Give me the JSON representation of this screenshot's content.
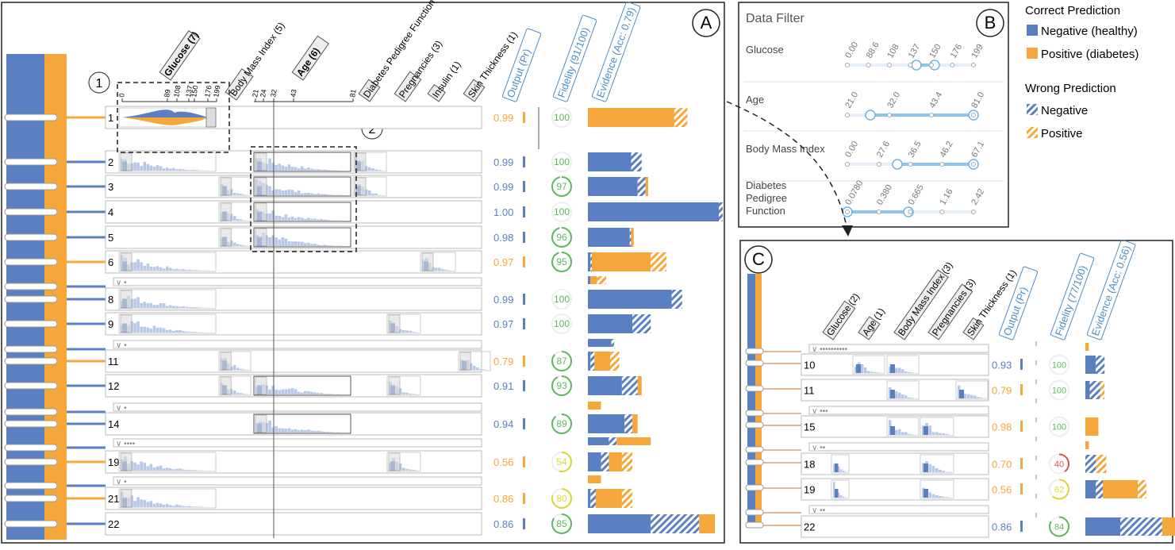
{
  "panelA": {
    "label": "A",
    "callout1": "1",
    "callout2": "2",
    "features": [
      "Glucose (7)",
      "Body Mass Index (5)",
      "Age (6)",
      "Diabetes Pedigree Function",
      "Pregnancies (3)",
      "Insulin (1)",
      "Skin Thickness (1)"
    ],
    "column_headers": [
      "Output (Pr)",
      "Fidelity (91/100)",
      "Evidence (Acc: 0.79)"
    ],
    "glucose_ticks": [
      "0",
      "89",
      "108",
      "137",
      "150",
      "176",
      "199"
    ],
    "age_ticks": [
      "21",
      "24",
      "32",
      "43",
      "81"
    ],
    "rows": [
      {
        "id": "1",
        "kind": "rule",
        "output": "0.99",
        "out_class": "pos",
        "fidelity": "100",
        "fid_frac": 1.0,
        "fid_color": "#5cb85c",
        "ev_neg": 0,
        "ev_negw": 0,
        "ev_pos": 0.66,
        "ev_posw": 0.1
      },
      {
        "id": "2",
        "kind": "rule",
        "output": "0.99",
        "out_class": "neg",
        "fidelity": "100",
        "fid_frac": 1.0,
        "fid_color": "#5cb85c",
        "ev_neg": 0.33,
        "ev_negw": 0.08,
        "ev_pos": 0,
        "ev_posw": 0
      },
      {
        "id": "3",
        "kind": "rule",
        "output": "0.99",
        "out_class": "neg",
        "fidelity": "97",
        "fid_color": "#5cb85c",
        "fid_frac": 0.97,
        "ev_neg": 0.38,
        "ev_negw": 0.06,
        "ev_pos": 0.02,
        "ev_posw": 0
      },
      {
        "id": "4",
        "kind": "rule",
        "output": "1.00",
        "out_class": "neg",
        "fidelity": "100",
        "fid_frac": 1.0,
        "fid_color": "#5cb85c",
        "ev_neg": 1.0,
        "ev_negw": 0.03,
        "ev_pos": 0,
        "ev_posw": 0
      },
      {
        "id": "5",
        "kind": "rule",
        "output": "0.98",
        "out_class": "neg",
        "fidelity": "96",
        "fid_frac": 0.96,
        "fid_color": "#5cb85c",
        "ev_neg": 0.32,
        "ev_negw": 0.01,
        "ev_pos": 0.02,
        "ev_posw": 0
      },
      {
        "id": "6",
        "kind": "rule",
        "output": "0.97",
        "out_class": "pos",
        "fidelity": "95",
        "fid_frac": 0.95,
        "fid_color": "#5cb85c",
        "ev_neg": 0.02,
        "ev_negw": 0.01,
        "ev_pos": 0.45,
        "ev_posw": 0.12
      },
      {
        "id": "",
        "kind": "collapsed",
        "dots": "•",
        "ev_neg": 0.02,
        "ev_negw": 0,
        "ev_pos": 0.05,
        "ev_posw": 0.07
      },
      {
        "id": "8",
        "kind": "rule",
        "output": "0.99",
        "out_class": "neg",
        "fidelity": "100",
        "fid_frac": 1.0,
        "fid_color": "#5cb85c",
        "ev_neg": 0.64,
        "ev_negw": 0.08,
        "ev_pos": 0,
        "ev_posw": 0
      },
      {
        "id": "9",
        "kind": "rule",
        "output": "0.97",
        "out_class": "neg",
        "fidelity": "100",
        "fid_frac": 1.0,
        "fid_color": "#5cb85c",
        "ev_neg": 0.34,
        "ev_negw": 0.14,
        "ev_pos": 0,
        "ev_posw": 0
      },
      {
        "id": "",
        "kind": "collapsed",
        "dots": "•",
        "ev_neg": 0.18,
        "ev_negw": 0.02,
        "ev_pos": 0,
        "ev_posw": 0
      },
      {
        "id": "11",
        "kind": "rule",
        "output": "0.79",
        "out_class": "pos",
        "fidelity": "87",
        "fid_frac": 0.87,
        "fid_color": "#5cb85c",
        "ev_neg": 0.02,
        "ev_negw": 0.03,
        "ev_pos": 0.12,
        "ev_posw": 0.07
      },
      {
        "id": "12",
        "kind": "rule",
        "output": "0.91",
        "out_class": "neg",
        "fidelity": "93",
        "fid_frac": 0.93,
        "fid_color": "#5cb85c",
        "ev_neg": 0.26,
        "ev_negw": 0.12,
        "ev_pos": 0.03,
        "ev_posw": 0
      },
      {
        "id": "",
        "kind": "collapsed",
        "dots": "•",
        "ev_neg": 0,
        "ev_negw": 0,
        "ev_pos": 0.1,
        "ev_posw": 0
      },
      {
        "id": "14",
        "kind": "rule",
        "output": "0.94",
        "out_class": "neg",
        "fidelity": "89",
        "fid_frac": 0.89,
        "fid_color": "#5cb85c",
        "ev_neg": 0.28,
        "ev_negw": 0.06,
        "ev_pos": 0.04,
        "ev_posw": 0
      },
      {
        "id": "",
        "kind": "collapsed",
        "dots": "••••",
        "ev_neg": 0.16,
        "ev_negw": 0.06,
        "ev_pos": 0.26,
        "ev_posw": 0
      },
      {
        "id": "19",
        "kind": "rule",
        "output": "0.56",
        "out_class": "pos",
        "fidelity": "54",
        "fid_frac": 0.54,
        "fid_color": "#d9d935",
        "ev_neg": 0.1,
        "ev_negw": 0.06,
        "ev_pos": 0.1,
        "ev_posw": 0.08
      },
      {
        "id": "",
        "kind": "collapsed",
        "dots": "•",
        "ev_neg": 0,
        "ev_negw": 0,
        "ev_pos": 0.1,
        "ev_posw": 0
      },
      {
        "id": "21",
        "kind": "rule",
        "output": "0.86",
        "out_class": "pos",
        "fidelity": "80",
        "fid_frac": 0.8,
        "fid_color": "#d9d935",
        "ev_neg": 0.02,
        "ev_negw": 0.04,
        "ev_pos": 0.2,
        "ev_posw": 0.08
      },
      {
        "id": "22",
        "kind": "rule",
        "output": "0.86",
        "out_class": "neg",
        "fidelity": "85",
        "fid_frac": 0.85,
        "fid_color": "#5cb85c",
        "ev_neg": 0.48,
        "ev_negw": 0.37,
        "ev_pos": 0.12,
        "ev_posw": 0
      }
    ]
  },
  "panelB": {
    "label": "B",
    "title": "Data Filter",
    "filters": [
      {
        "name": "Glucose",
        "ticks": [
          "0.00",
          "88.6",
          "108",
          "137",
          "150",
          "176",
          "199"
        ]
      },
      {
        "name": "Age",
        "ticks": [
          "21.0",
          "32.0",
          "43.4",
          "81.0"
        ]
      },
      {
        "name": "Body Mass Index",
        "ticks": [
          "0.00",
          "27.6",
          "36.5",
          "46.2",
          "67.1"
        ]
      },
      {
        "name": "Diabetes Pedigree Function",
        "ticks": [
          "0.0780",
          "0.380",
          "0.665",
          "1.16",
          "2.42"
        ]
      }
    ]
  },
  "legend": {
    "correct_title": "Correct Prediction",
    "correct_items": [
      "Negative (healthy)",
      "Positive (diabetes)"
    ],
    "wrong_title": "Wrong Prediction",
    "wrong_items": [
      "Negative",
      "Positive"
    ]
  },
  "panelC": {
    "label": "C",
    "features": [
      "Glucose (2)",
      "Age (1)",
      "Body Mass Index (3)",
      "Pregnancies (3)",
      "Skin Thickness (1)"
    ],
    "column_headers": [
      "Output (Pr)",
      "Fidelity (77/100)",
      "Evidence (Acc: 0.56)"
    ],
    "rows": [
      {
        "id": "",
        "kind": "collapsed",
        "dots": "••••••••••",
        "ev_neg": 0,
        "ev_negw": 0,
        "ev_pos": 0.04,
        "ev_posw": 0
      },
      {
        "id": "10",
        "kind": "rule",
        "output": "0.93",
        "out_class": "neg",
        "fidelity": "100",
        "fid_frac": 1.0,
        "fid_color": "#5cb85c",
        "ev_neg": 0.12,
        "ev_negw": 0.1,
        "ev_pos": 0,
        "ev_posw": 0
      },
      {
        "id": "11",
        "kind": "rule",
        "output": "0.79",
        "out_class": "pos",
        "fidelity": "100",
        "fid_frac": 1.0,
        "fid_color": "#5cb85c",
        "ev_neg": 0.05,
        "ev_negw": 0.12,
        "ev_pos": 0,
        "ev_posw": 0.05
      },
      {
        "id": "",
        "kind": "collapsed",
        "dots": "•••",
        "ev_neg": 0,
        "ev_negw": 0,
        "ev_pos": 0,
        "ev_posw": 0
      },
      {
        "id": "15",
        "kind": "rule",
        "output": "0.98",
        "out_class": "pos",
        "fidelity": "100",
        "fid_frac": 1.0,
        "fid_color": "#5cb85c",
        "ev_neg": 0,
        "ev_negw": 0,
        "ev_pos": 0.15,
        "ev_posw": 0
      },
      {
        "id": "",
        "kind": "collapsed",
        "dots": "••",
        "ev_neg": 0,
        "ev_negw": 0,
        "ev_pos": 0.04,
        "ev_posw": 0
      },
      {
        "id": "18",
        "kind": "rule",
        "output": "0.70",
        "out_class": "pos",
        "fidelity": "40",
        "fid_frac": 0.4,
        "fid_color": "#d9534f",
        "ev_neg": 0,
        "ev_negw": 0.12,
        "ev_pos": 0,
        "ev_posw": 0.12
      },
      {
        "id": "19",
        "kind": "rule",
        "output": "0.56",
        "out_class": "pos",
        "fidelity": "62",
        "fid_frac": 0.62,
        "fid_color": "#d9d935",
        "ev_neg": 0.12,
        "ev_negw": 0.08,
        "ev_pos": 0.4,
        "ev_posw": 0.1
      },
      {
        "id": "",
        "kind": "collapsed",
        "dots": "••",
        "ev_neg": 0,
        "ev_negw": 0,
        "ev_pos": 0,
        "ev_posw": 0
      },
      {
        "id": "22",
        "kind": "rule",
        "output": "0.86",
        "out_class": "neg",
        "fidelity": "84",
        "fid_frac": 0.84,
        "fid_color": "#5cb85c",
        "ev_neg": 0.4,
        "ev_negw": 0.48,
        "ev_pos": 0.15,
        "ev_posw": 0
      }
    ]
  },
  "colors": {
    "negative": "#5b7fc3",
    "positive": "#f5a73b",
    "neg_light": "#b7c8e8",
    "axis": "#333333",
    "label_blue": "#4a8cc9"
  }
}
